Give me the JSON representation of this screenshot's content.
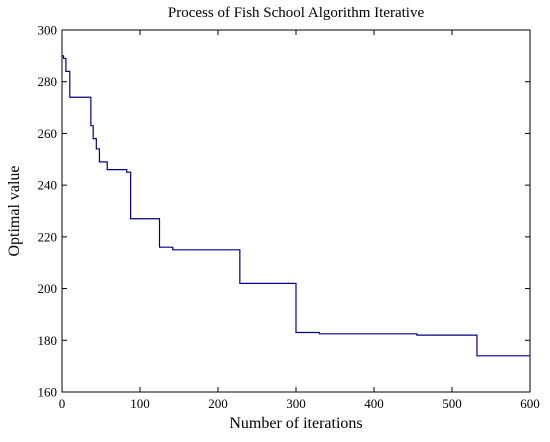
{
  "chart_data": {
    "type": "line",
    "title": "Process of Fish School Algorithm Iterative",
    "xlabel": "Number of iterations",
    "ylabel": "Optimal value",
    "xlim": [
      0,
      600
    ],
    "ylim": [
      160,
      300
    ],
    "xticks": [
      0,
      100,
      200,
      300,
      400,
      500,
      600
    ],
    "yticks": [
      160,
      180,
      200,
      220,
      240,
      260,
      280,
      300
    ],
    "grid": false,
    "line_color": "#00008b",
    "series": [
      {
        "step": "post",
        "x": [
          0,
          2,
          5,
          10,
          37,
          40,
          44,
          48,
          52,
          58,
          67,
          83,
          88,
          122,
          125,
          142,
          225,
          228,
          297,
          300,
          330,
          455,
          530,
          532,
          600
        ],
        "y": [
          290,
          289,
          284,
          274,
          263,
          258,
          254,
          249,
          249,
          246,
          246,
          245,
          227,
          227,
          216,
          215,
          215,
          202,
          202,
          183,
          182.5,
          182,
          182,
          174,
          174
        ]
      }
    ]
  }
}
